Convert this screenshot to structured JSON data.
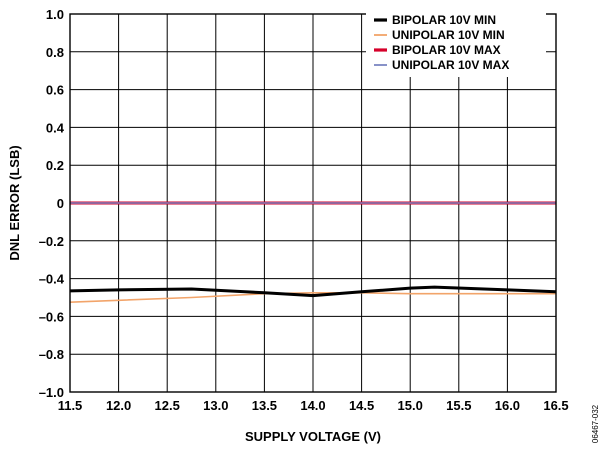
{
  "figure_id": "06467-032",
  "chart_data": {
    "type": "line",
    "xlabel": "SUPPLY VOLTAGE (V)",
    "ylabel": "DNL ERROR (LSB)",
    "xlim": [
      11.5,
      16.5
    ],
    "ylim": [
      -1.0,
      1.0
    ],
    "grid": true,
    "legend_position": "top-right",
    "x_ticks": [
      "11.5",
      "12.0",
      "12.5",
      "13.0",
      "13.5",
      "14.0",
      "14.5",
      "15.0",
      "15.5",
      "16.0",
      "16.5"
    ],
    "y_ticks": [
      "1.0",
      "0.8",
      "0.6",
      "0.4",
      "0.2",
      "0",
      "–0.2",
      "–0.4",
      "–0.6",
      "–0.8",
      "–1.0"
    ],
    "series": [
      {
        "name": "BIPOLAR 10V MIN",
        "color": "#000000",
        "x": [
          11.5,
          12.0,
          12.75,
          13.5,
          14.0,
          14.5,
          15.0,
          15.25,
          16.0,
          16.5
        ],
        "y": [
          -0.465,
          -0.46,
          -0.455,
          -0.475,
          -0.49,
          -0.47,
          -0.45,
          -0.445,
          -0.46,
          -0.47
        ]
      },
      {
        "name": "UNIPOLAR 10V MIN",
        "color": "#f2a46a",
        "x": [
          11.5,
          12.0,
          12.75,
          13.5,
          14.0,
          14.5,
          15.0,
          15.5,
          16.0,
          16.5
        ],
        "y": [
          -0.525,
          -0.515,
          -0.5,
          -0.48,
          -0.475,
          -0.475,
          -0.48,
          -0.48,
          -0.48,
          -0.48
        ]
      },
      {
        "name": "BIPOLAR 10V MAX",
        "color": "#d6002a",
        "x": [
          11.5,
          16.5
        ],
        "y": [
          0.0,
          0.0
        ]
      },
      {
        "name": "UNIPOLAR 10V MAX",
        "color": "#7b86c2",
        "x": [
          11.5,
          16.5
        ],
        "y": [
          0.0,
          0.0
        ]
      }
    ]
  }
}
